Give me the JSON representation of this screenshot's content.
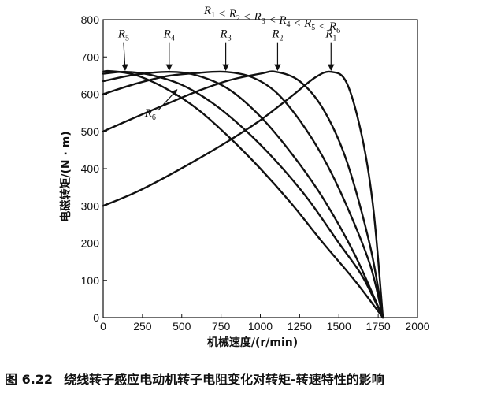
{
  "chart_data": {
    "type": "line",
    "title": "R1 < R2 < R3 < R4 < R5 < R6",
    "title_parts": [
      "R",
      "1",
      " < ",
      "R",
      "2",
      " < ",
      "R",
      "3",
      " < ",
      "R",
      "4",
      " < ",
      "R",
      "5",
      " < ",
      "R",
      "6"
    ],
    "xlabel": "机械速度/(r/min)",
    "ylabel": "电磁转矩/(N · m)",
    "xlim": [
      0,
      2000
    ],
    "ylim": [
      0,
      800
    ],
    "xticks": [
      0,
      250,
      500,
      750,
      1000,
      1250,
      1500,
      1750,
      2000
    ],
    "yticks": [
      0,
      100,
      200,
      300,
      400,
      500,
      600,
      700,
      800
    ],
    "grid": false,
    "series": [
      {
        "name": "R1",
        "x": [
          0,
          200,
          400,
          600,
          800,
          1000,
          1200,
          1350,
          1450,
          1550,
          1650,
          1720,
          1780
        ],
        "y": [
          300,
          335,
          378,
          425,
          475,
          530,
          595,
          645,
          660,
          630,
          480,
          290,
          0
        ]
      },
      {
        "name": "R2",
        "x": [
          0,
          200,
          400,
          600,
          800,
          1000,
          1100,
          1250,
          1400,
          1550,
          1700,
          1780
        ],
        "y": [
          500,
          537,
          573,
          608,
          637,
          655,
          660,
          635,
          560,
          420,
          190,
          0
        ]
      },
      {
        "name": "R3",
        "x": [
          0,
          200,
          400,
          600,
          780,
          950,
          1100,
          1250,
          1400,
          1550,
          1700,
          1780
        ],
        "y": [
          600,
          627,
          648,
          657,
          660,
          645,
          605,
          530,
          430,
          300,
          140,
          0
        ]
      },
      {
        "name": "R4",
        "x": [
          0,
          200,
          420,
          600,
          800,
          1000,
          1200,
          1400,
          1600,
          1780
        ],
        "y": [
          635,
          652,
          660,
          650,
          613,
          540,
          440,
          320,
          170,
          0
        ]
      },
      {
        "name": "R5",
        "x": [
          0,
          140,
          300,
          500,
          700,
          900,
          1100,
          1300,
          1500,
          1650,
          1780
        ],
        "y": [
          655,
          660,
          652,
          625,
          575,
          505,
          420,
          320,
          200,
          110,
          0
        ]
      },
      {
        "name": "R6",
        "x": [
          0,
          40,
          200,
          400,
          600,
          800,
          1000,
          1200,
          1400,
          1600,
          1780
        ],
        "y": [
          660,
          662,
          652,
          615,
          560,
          485,
          400,
          305,
          200,
          100,
          0
        ]
      }
    ],
    "annotations": [
      {
        "text": "R",
        "sub": "5",
        "label_xy": [
          130,
          752
        ],
        "arrow_to": [
          140,
          660
        ]
      },
      {
        "text": "R",
        "sub": "4",
        "label_xy": [
          420,
          752
        ],
        "arrow_to": [
          420,
          660
        ]
      },
      {
        "text": "R",
        "sub": "3",
        "label_xy": [
          780,
          752
        ],
        "arrow_to": [
          780,
          660
        ]
      },
      {
        "text": "R",
        "sub": "2",
        "label_xy": [
          1110,
          752
        ],
        "arrow_to": [
          1110,
          660
        ]
      },
      {
        "text": "R",
        "sub": "1",
        "label_xy": [
          1450,
          752
        ],
        "arrow_to": [
          1450,
          660
        ]
      },
      {
        "text": "R",
        "sub": "6",
        "label_xy": [
          300,
          540
        ],
        "arrow_to": [
          470,
          608
        ]
      }
    ]
  },
  "caption": {
    "number": "图 6.22",
    "text": "绕线转子感应电动机转子电阻变化对转矩-转速特性的影响"
  }
}
